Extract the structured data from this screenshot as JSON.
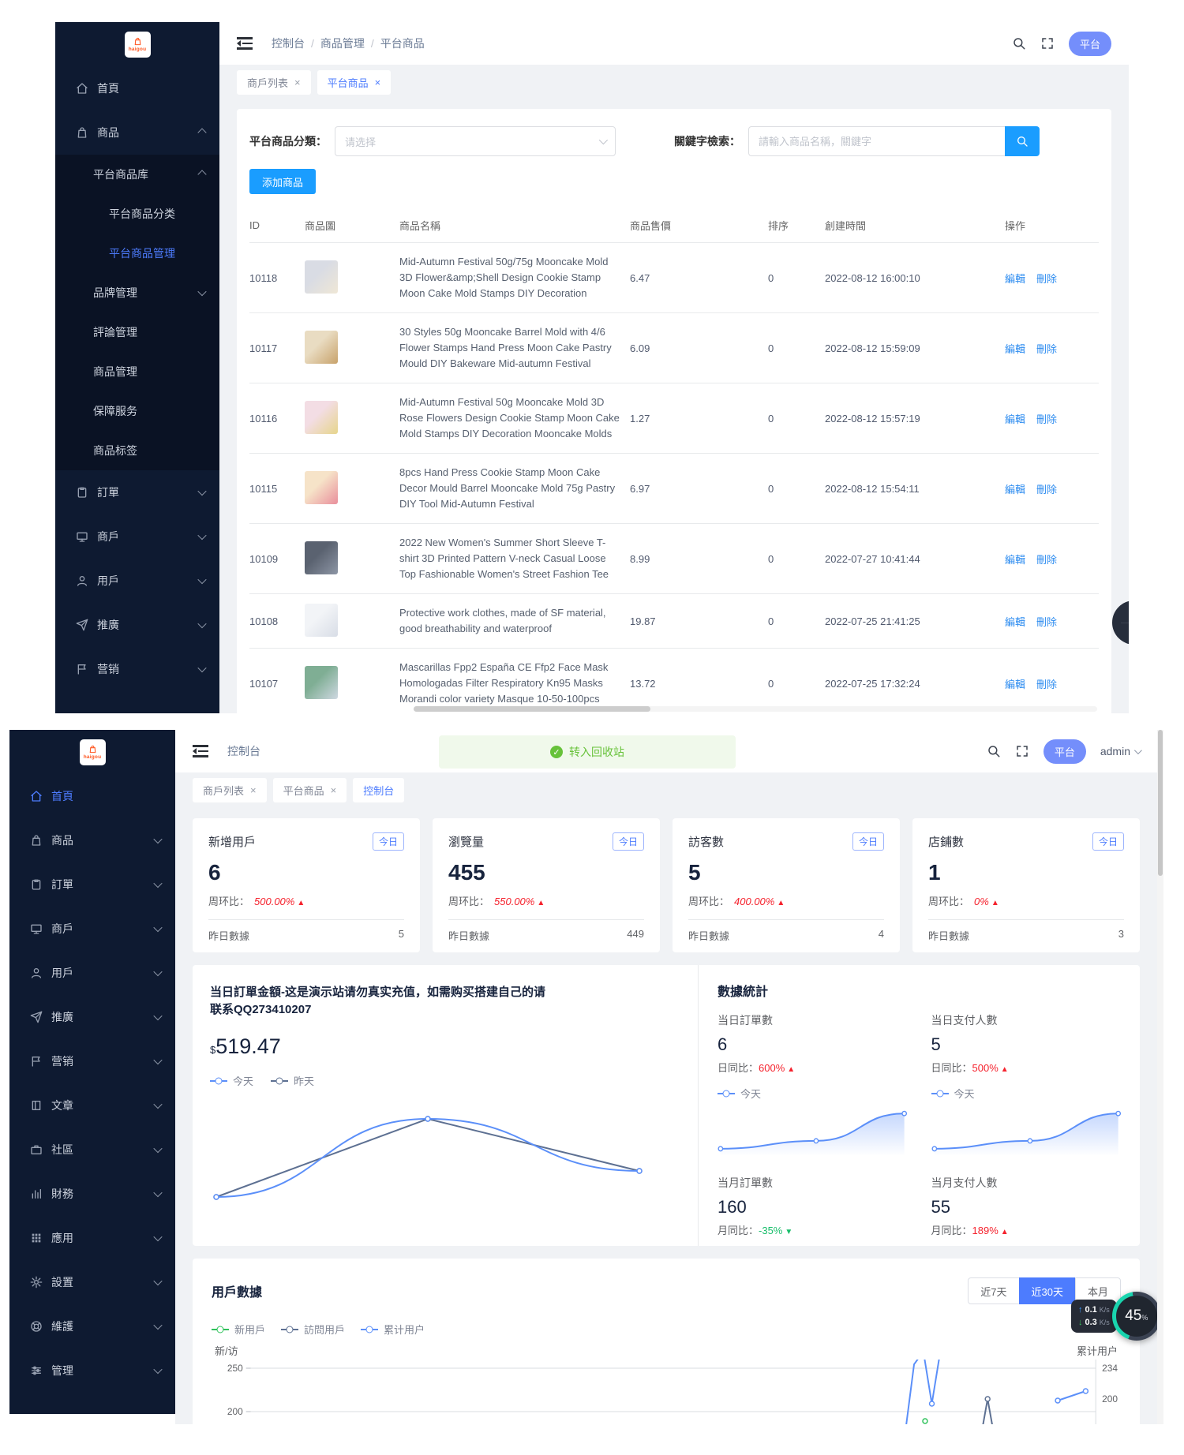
{
  "brand": {
    "logo_text": "haigou"
  },
  "top": {
    "sidebar": {
      "items": [
        {
          "label": "首頁",
          "icon": "home"
        },
        {
          "label": "商品",
          "icon": "bag",
          "chev": "up"
        },
        {
          "label": "平台商品库",
          "cls": "sub",
          "chev": "up"
        },
        {
          "label": "平台商品分类",
          "cls": "sub",
          "indent": 2
        },
        {
          "label": "平台商品管理",
          "cls": "sub",
          "indent": 2,
          "active": true
        },
        {
          "label": "品牌管理",
          "cls": "sub",
          "chev": "down"
        },
        {
          "label": "評論管理",
          "cls": "sub"
        },
        {
          "label": "商品管理",
          "cls": "sub"
        },
        {
          "label": "保障服务",
          "cls": "sub"
        },
        {
          "label": "商品标签",
          "cls": "sub"
        },
        {
          "label": "訂單",
          "icon": "order",
          "chev": "down"
        },
        {
          "label": "商戶",
          "icon": "shop",
          "chev": "down"
        },
        {
          "label": "用戶",
          "icon": "user",
          "chev": "down"
        },
        {
          "label": "推廣",
          "icon": "promo",
          "chev": "down"
        },
        {
          "label": "营销",
          "icon": "flag",
          "chev": "down"
        }
      ]
    },
    "header": {
      "breadcrumb": [
        "控制台",
        "商品管理",
        "平台商品"
      ],
      "badge": "平台"
    },
    "tabs": [
      {
        "label": "商戶列表",
        "close": true
      },
      {
        "label": "平台商品",
        "close": true,
        "active": true
      }
    ],
    "filter": {
      "category_label": "平台商品分類：",
      "category_placeholder": "请选择",
      "keyword_label": "關鍵字檢索：",
      "keyword_placeholder": "請輸入商品名稱，關鍵字",
      "add_button": "添加商品"
    },
    "table": {
      "headers": [
        "ID",
        "商品圖",
        "商品名稱",
        "商品售價",
        "排序",
        "創建時間",
        "操作"
      ],
      "rows": [
        {
          "id": "10118",
          "name": "Mid-Autumn Festival 50g/75g Mooncake Mold 3D Flower&amp;Shell Design Cookie Stamp Moon Cake Mold Stamps DIY Decoration",
          "price": "6.47",
          "sort": "0",
          "created": "2022-08-12 16:00:10",
          "edit": "編輯",
          "del": "刪除",
          "thumb": [
            "#d9dce4",
            "#efe7d6"
          ]
        },
        {
          "id": "10117",
          "name": "30 Styles 50g Mooncake Barrel Mold with 4/6 Flower Stamps Hand Press Moon Cake Pastry Mould DIY Bakeware Mid-autumn Festival",
          "price": "6.09",
          "sort": "0",
          "created": "2022-08-12 15:59:09",
          "edit": "編輯",
          "del": "刪除",
          "thumb": [
            "#e9dcc2",
            "#c8a26b"
          ]
        },
        {
          "id": "10116",
          "name": "Mid-Autumn Festival 50g Mooncake Mold 3D Rose Flowers Design Cookie Stamp Moon Cake Mold Stamps DIY Decoration Mooncake Molds",
          "price": "1.27",
          "sort": "0",
          "created": "2022-08-12 15:57:19",
          "edit": "編輯",
          "del": "刪除",
          "thumb": [
            "#f3dde4",
            "#e6d58b"
          ]
        },
        {
          "id": "10115",
          "name": "8pcs Hand Press Cookie Stamp Moon Cake Decor Mould Barrel Mooncake Mold 75g Pastry DIY Tool Mid-Autumn Festival",
          "price": "6.97",
          "sort": "0",
          "created": "2022-08-12 15:54:11",
          "edit": "編輯",
          "del": "刪除",
          "thumb": [
            "#f6e3c8",
            "#e98f9c"
          ]
        },
        {
          "id": "10109",
          "name": "2022 New Women's Summer Short Sleeve T-shirt 3D Printed Pattern V-neck Casual Loose Top Fashionable Women's Street Fashion Tee",
          "price": "8.99",
          "sort": "0",
          "created": "2022-07-27 10:41:44",
          "edit": "編輯",
          "del": "刪除",
          "thumb": [
            "#5a6270",
            "#8d96a5"
          ]
        },
        {
          "id": "10108",
          "name": "Protective work clothes, made of SF material, good breathability and waterproof",
          "price": "19.87",
          "sort": "0",
          "created": "2022-07-25 21:41:25",
          "edit": "編輯",
          "del": "刪除",
          "thumb": [
            "#f2f4f7",
            "#d8dde6"
          ]
        },
        {
          "id": "10107",
          "name": "Mascarillas Fpp2 España CE Ffp2 Face Mask Homologadas Filter Respiratory Kn95 Masks Morandi color variety Masque 10-50-100pcs",
          "price": "13.72",
          "sort": "0",
          "created": "2022-07-25 17:32:24",
          "edit": "編輯",
          "del": "刪除",
          "thumb": [
            "#7fae94",
            "#cfd8e2"
          ]
        }
      ]
    }
  },
  "bottom": {
    "sidebar": {
      "items": [
        {
          "label": "首頁",
          "icon": "home",
          "active": true
        },
        {
          "label": "商品",
          "icon": "bag",
          "chev": "down"
        },
        {
          "label": "訂單",
          "icon": "order",
          "chev": "down"
        },
        {
          "label": "商戶",
          "icon": "shop",
          "chev": "down"
        },
        {
          "label": "用戶",
          "icon": "user",
          "chev": "down"
        },
        {
          "label": "推廣",
          "icon": "promo",
          "chev": "down"
        },
        {
          "label": "营销",
          "icon": "flag",
          "chev": "down"
        },
        {
          "label": "文章",
          "icon": "article",
          "chev": "down"
        },
        {
          "label": "社區",
          "icon": "community",
          "chev": "down"
        },
        {
          "label": "財務",
          "icon": "finance",
          "chev": "down"
        },
        {
          "label": "應用",
          "icon": "apps",
          "chev": "down"
        },
        {
          "label": "設置",
          "icon": "gear",
          "chev": "down"
        },
        {
          "label": "維護",
          "icon": "maintain",
          "chev": "down"
        },
        {
          "label": "管理",
          "icon": "sliders",
          "chev": "down"
        }
      ]
    },
    "header": {
      "breadcrumb": [
        "控制台"
      ],
      "toast": "转入回收站",
      "badge": "平台",
      "user": "admin"
    },
    "tabs": [
      {
        "label": "商戶列表",
        "close": true
      },
      {
        "label": "平台商品",
        "close": true
      },
      {
        "label": "控制台",
        "active": true
      }
    ],
    "stats": [
      {
        "title": "新增用戶",
        "badge": "今日",
        "value": "6",
        "ratio_label": "周环比：",
        "ratio": "500.00%",
        "trend": "up",
        "foot_label": "昨日數據",
        "foot_value": "5"
      },
      {
        "title": "瀏覽量",
        "badge": "今日",
        "value": "455",
        "ratio_label": "周环比：",
        "ratio": "550.00%",
        "trend": "up",
        "foot_label": "昨日數據",
        "foot_value": "449"
      },
      {
        "title": "訪客數",
        "badge": "今日",
        "value": "5",
        "ratio_label": "周环比：",
        "ratio": "400.00%",
        "trend": "up",
        "foot_label": "昨日數據",
        "foot_value": "4"
      },
      {
        "title": "店鋪數",
        "badge": "今日",
        "value": "1",
        "ratio_label": "周环比：",
        "ratio": "0%",
        "trend": "up",
        "foot_label": "昨日數據",
        "foot_value": "3"
      }
    ],
    "order_panel": {
      "title": "当日訂單金額-这是演示站请勿真实充值，如需购买搭建自己的请联系QQ273410207",
      "currency": "$",
      "amount": "519.47",
      "legend": [
        {
          "label": "今天",
          "color": "#5b8ff9"
        },
        {
          "label": "昨天",
          "color": "#5d7092"
        }
      ]
    },
    "stats_panel": {
      "title": "數據統計",
      "blocks": [
        {
          "label": "当日訂單數",
          "value": "6",
          "ratio_label": "日同比：",
          "ratio": "600%",
          "trend": "up",
          "legend": "今天",
          "spark": true
        },
        {
          "label": "当日支付人數",
          "value": "5",
          "ratio_label": "日同比：",
          "ratio": "500%",
          "trend": "up",
          "legend": "今天",
          "spark": true
        },
        {
          "label": "当月訂單數",
          "value": "160",
          "ratio_label": "月同比：",
          "ratio": "-35%",
          "trend": "down"
        },
        {
          "label": "当月支付人數",
          "value": "55",
          "ratio_label": "月同比：",
          "ratio": "189%",
          "trend": "up"
        }
      ]
    },
    "user_panel": {
      "title": "用戶數據",
      "range_buttons": [
        {
          "label": "近7天"
        },
        {
          "label": "近30天",
          "active": true
        },
        {
          "label": "本月"
        }
      ],
      "legend": [
        {
          "label": "新用戶",
          "color": "#2fc25b"
        },
        {
          "label": "訪問用戶",
          "color": "#5d7092"
        },
        {
          "label": "累计用户",
          "color": "#5b8ff9"
        }
      ],
      "left_axis_title": "新/访",
      "right_axis_title": "累计用户"
    },
    "net_widget": {
      "up_value": "0.1",
      "up_unit": "K/s",
      "down_value": "0.3",
      "down_unit": "K/s",
      "percent": "45",
      "percent_unit": "%"
    }
  },
  "chart_data": [
    {
      "id": "order_amount",
      "type": "line",
      "title": "当日訂單金額",
      "currency_total": 519.47,
      "x_labels": [
        "",
        "",
        ""
      ],
      "series": [
        {
          "name": "昨天",
          "color": "#5d7092",
          "smooth": false,
          "points": [
            [
              0,
              80
            ],
            [
              50,
              14
            ],
            [
              100,
              58
            ]
          ]
        },
        {
          "name": "今天",
          "color": "#5b8ff9",
          "smooth": true,
          "points": [
            [
              0,
              80
            ],
            [
              50,
              14
            ],
            [
              100,
              58
            ]
          ]
        }
      ],
      "legend_position": "top",
      "grid": false
    },
    {
      "id": "spark0",
      "type": "area",
      "series": [
        {
          "name": "今天",
          "color": "#5b8ff9",
          "points": [
            [
              0,
              82
            ],
            [
              52,
              66
            ],
            [
              100,
              10
            ]
          ]
        }
      ],
      "values_hint": [
        1,
        2,
        6
      ]
    },
    {
      "id": "spark1",
      "type": "area",
      "series": [
        {
          "name": "今天",
          "color": "#5b8ff9",
          "points": [
            [
              0,
              82
            ],
            [
              52,
              66
            ],
            [
              100,
              10
            ]
          ]
        }
      ],
      "values_hint": [
        1,
        2,
        5
      ]
    },
    {
      "id": "user_data",
      "type": "line",
      "title": "用戶數據",
      "range": "近30天",
      "left_axis": {
        "title": "新/访",
        "ticks": [
          250,
          200
        ],
        "tick_y": [
          11,
          66
        ]
      },
      "right_axis": {
        "title": "累计用户",
        "ticks": [
          234,
          200
        ],
        "tick_y": [
          11,
          50
        ]
      },
      "series": [
        {
          "name": "累计用户",
          "color": "#5b8ff9",
          "segments": [
            [
              [
                77,
                130
              ],
              [
                78.5,
                6
              ],
              [
                79.6,
                -10
              ],
              [
                80.6,
                56
              ],
              [
                81.6,
                -10
              ]
            ],
            [
              [
                95.5,
                52
              ],
              [
                98.8,
                40
              ]
            ]
          ],
          "dots": [
            [
              80.6,
              56
            ],
            [
              95.5,
              52
            ],
            [
              98.8,
              40
            ]
          ]
        },
        {
          "name": "訪問用戶",
          "color": "#5d7092",
          "segments": [
            [
              [
                86.2,
                110
              ],
              [
                87.2,
                50
              ],
              [
                88.2,
                110
              ]
            ]
          ],
          "dots": [
            [
              87.2,
              50
            ]
          ]
        },
        {
          "name": "新用戶",
          "color": "#2fc25b",
          "segments": [],
          "dots": [
            [
              79.8,
              78
            ]
          ]
        }
      ],
      "grid": true,
      "note": "chart partially cut off at bottom of screenshot"
    }
  ]
}
